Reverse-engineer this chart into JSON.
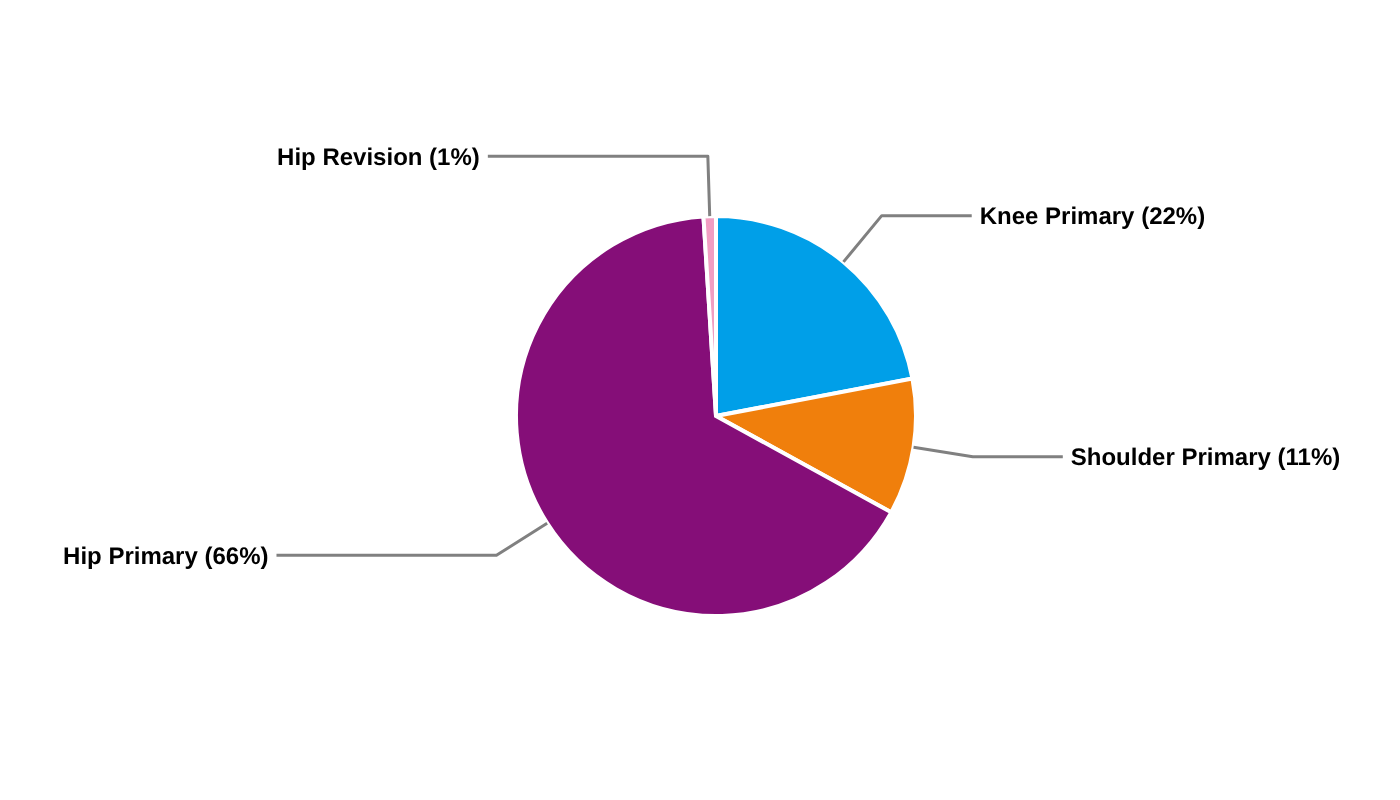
{
  "chart_data": {
    "type": "pie",
    "categories": [
      "Knee Primary (22%)",
      "Shoulder Primary (11%)",
      "Hip Primary (66%)",
      "Hip Revision (1%)"
    ],
    "values": [
      22,
      11,
      66,
      1
    ],
    "colors": [
      "#009fe8",
      "#f07f0c",
      "#850e78",
      "#f19ec2"
    ]
  }
}
